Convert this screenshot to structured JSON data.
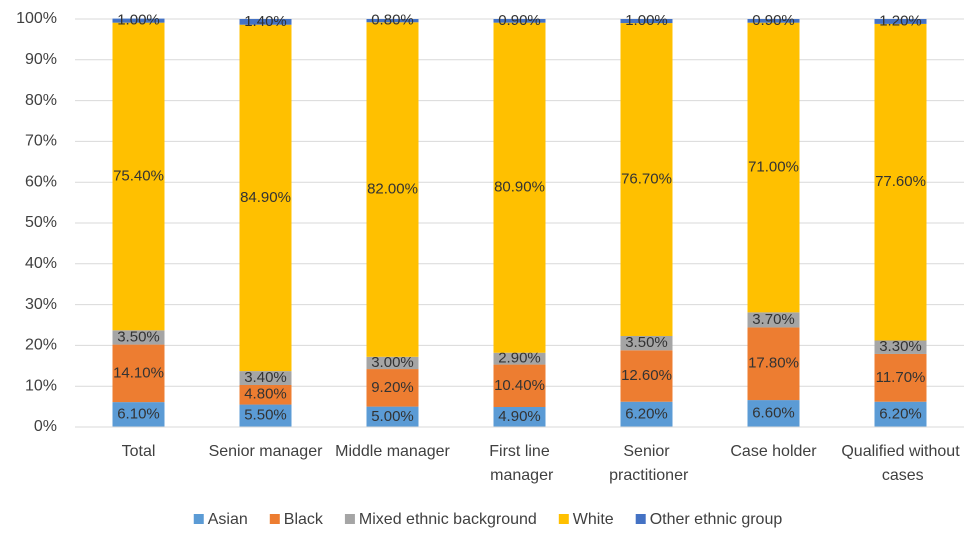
{
  "chart_data": {
    "type": "stacked_bar",
    "categories": [
      "Total",
      "Senior manager",
      "Middle manager",
      "First line manager",
      "Senior practitioner",
      "Case holder",
      "Qualified without cases"
    ],
    "series": [
      {
        "name": "Asian",
        "color": "#5b9bd5",
        "values": [
          6.1,
          5.5,
          5.0,
          4.9,
          6.2,
          6.6,
          6.2
        ],
        "value_labels": [
          "6.10%",
          "5.50%",
          "5.00%",
          "4.90%",
          "6.20%",
          "6.60%",
          "6.20%"
        ]
      },
      {
        "name": "Black",
        "color": "#ed7d31",
        "values": [
          14.1,
          4.8,
          9.2,
          10.4,
          12.6,
          17.8,
          11.7
        ],
        "value_labels": [
          "14.10%",
          "4.80%",
          "9.20%",
          "10.40%",
          "12.60%",
          "17.80%",
          "11.70%"
        ]
      },
      {
        "name": "Mixed ethnic background",
        "color": "#a5a5a5",
        "values": [
          3.5,
          3.4,
          3.0,
          2.9,
          3.5,
          3.7,
          3.3
        ],
        "value_labels": [
          "3.50%",
          "3.40%",
          "3.00%",
          "2.90%",
          "3.50%",
          "3.70%",
          "3.30%"
        ]
      },
      {
        "name": "White",
        "color": "#ffc000",
        "values": [
          75.4,
          84.9,
          82.0,
          80.9,
          76.7,
          71.0,
          77.6
        ],
        "value_labels": [
          "75.40%",
          "84.90%",
          "82.00%",
          "80.90%",
          "76.70%",
          "71.00%",
          "77.60%"
        ]
      },
      {
        "name": "Other ethnic group",
        "color": "#4472c4",
        "values": [
          1.0,
          1.4,
          0.8,
          0.9,
          1.0,
          0.9,
          1.2
        ],
        "value_labels": [
          "1.00%",
          "1.40%",
          "0.80%",
          "0.90%",
          "1.00%",
          "0.90%",
          "1.20%"
        ]
      }
    ],
    "ylim": [
      0,
      100
    ],
    "yticks": [
      {
        "value": 0,
        "label": "0%"
      },
      {
        "value": 10,
        "label": "10%"
      },
      {
        "value": 20,
        "label": "20%"
      },
      {
        "value": 30,
        "label": "30%"
      },
      {
        "value": 40,
        "label": "40%"
      },
      {
        "value": 50,
        "label": "50%"
      },
      {
        "value": 60,
        "label": "60%"
      },
      {
        "value": 70,
        "label": "70%"
      },
      {
        "value": 80,
        "label": "80%"
      },
      {
        "value": 90,
        "label": "90%"
      },
      {
        "value": 100,
        "label": "100%"
      }
    ],
    "grid": true,
    "legend": "bottom"
  }
}
